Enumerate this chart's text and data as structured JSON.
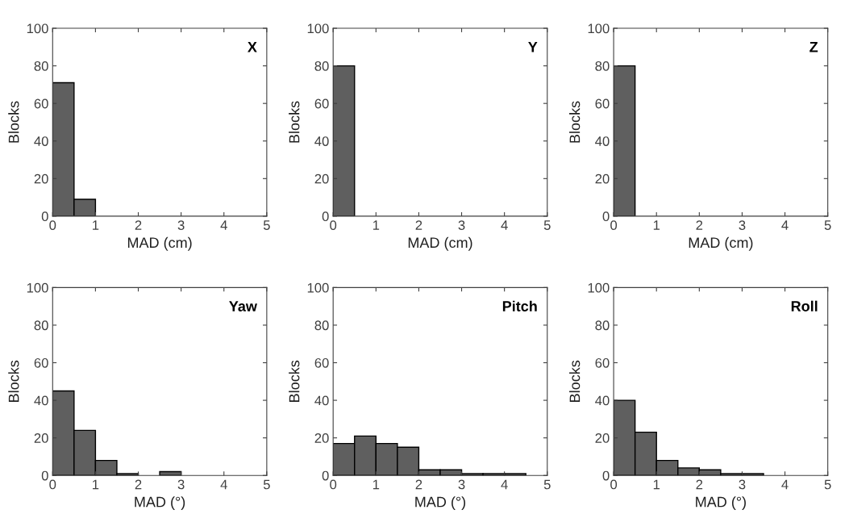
{
  "chart_data": [
    {
      "type": "histogram",
      "annotations": [
        "X"
      ],
      "xlabel": "MAD (cm)",
      "ylabel": "Blocks",
      "bins": [
        0,
        0.5,
        1,
        1.5,
        2,
        2.5,
        3,
        3.5,
        4,
        4.5,
        5
      ],
      "values": [
        71,
        9,
        0,
        0,
        0,
        0,
        0,
        0,
        0,
        0
      ],
      "color": "#5f5f5f",
      "xlim": [
        0,
        5
      ],
      "ylim": [
        0,
        100
      ],
      "xticks": [
        0,
        1,
        2,
        3,
        4,
        5
      ],
      "yticks": [
        0,
        20,
        40,
        60,
        80,
        100
      ]
    },
    {
      "type": "histogram",
      "annotations": [
        "Y"
      ],
      "xlabel": "MAD (cm)",
      "ylabel": "Blocks",
      "bins": [
        0,
        0.5,
        1,
        1.5,
        2,
        2.5,
        3,
        3.5,
        4,
        4.5,
        5
      ],
      "values": [
        80,
        0,
        0,
        0,
        0,
        0,
        0,
        0,
        0,
        0
      ],
      "color": "#5f5f5f",
      "xlim": [
        0,
        5
      ],
      "ylim": [
        0,
        100
      ],
      "xticks": [
        0,
        1,
        2,
        3,
        4,
        5
      ],
      "yticks": [
        0,
        20,
        40,
        60,
        80,
        100
      ]
    },
    {
      "type": "histogram",
      "annotations": [
        "Z"
      ],
      "xlabel": "MAD (cm)",
      "ylabel": "Blocks",
      "bins": [
        0,
        0.5,
        1,
        1.5,
        2,
        2.5,
        3,
        3.5,
        4,
        4.5,
        5
      ],
      "values": [
        80,
        0,
        0,
        0,
        0,
        0,
        0,
        0,
        0,
        0
      ],
      "color": "#5f5f5f",
      "xlim": [
        0,
        5
      ],
      "ylim": [
        0,
        100
      ],
      "xticks": [
        0,
        1,
        2,
        3,
        4,
        5
      ],
      "yticks": [
        0,
        20,
        40,
        60,
        80,
        100
      ]
    },
    {
      "type": "histogram",
      "annotations": [
        "Yaw"
      ],
      "xlabel": "MAD (°)",
      "ylabel": "Blocks",
      "bins": [
        0,
        0.5,
        1,
        1.5,
        2,
        2.5,
        3,
        3.5,
        4,
        4.5,
        5
      ],
      "values": [
        45,
        24,
        8,
        1,
        0,
        2,
        0,
        0,
        0,
        0
      ],
      "color": "#5f5f5f",
      "xlim": [
        0,
        5
      ],
      "ylim": [
        0,
        100
      ],
      "xticks": [
        0,
        1,
        2,
        3,
        4,
        5
      ],
      "yticks": [
        0,
        20,
        40,
        60,
        80,
        100
      ]
    },
    {
      "type": "histogram",
      "annotations": [
        "Pitch"
      ],
      "xlabel": "MAD (°)",
      "ylabel": "Blocks",
      "bins": [
        0,
        0.5,
        1,
        1.5,
        2,
        2.5,
        3,
        3.5,
        4,
        4.5,
        5
      ],
      "values": [
        17,
        21,
        17,
        15,
        3,
        3,
        1,
        1,
        1,
        0
      ],
      "color": "#5f5f5f",
      "xlim": [
        0,
        5
      ],
      "ylim": [
        0,
        100
      ],
      "xticks": [
        0,
        1,
        2,
        3,
        4,
        5
      ],
      "yticks": [
        0,
        20,
        40,
        60,
        80,
        100
      ]
    },
    {
      "type": "histogram",
      "annotations": [
        "Roll"
      ],
      "xlabel": "MAD (°)",
      "ylabel": "Blocks",
      "bins": [
        0,
        0.5,
        1,
        1.5,
        2,
        2.5,
        3,
        3.5,
        4,
        4.5,
        5
      ],
      "values": [
        40,
        23,
        8,
        4,
        3,
        1,
        1,
        0,
        0,
        0
      ],
      "color": "#5f5f5f",
      "xlim": [
        0,
        5
      ],
      "ylim": [
        0,
        100
      ],
      "xticks": [
        0,
        1,
        2,
        3,
        4,
        5
      ],
      "yticks": [
        0,
        20,
        40,
        60,
        80,
        100
      ]
    }
  ]
}
